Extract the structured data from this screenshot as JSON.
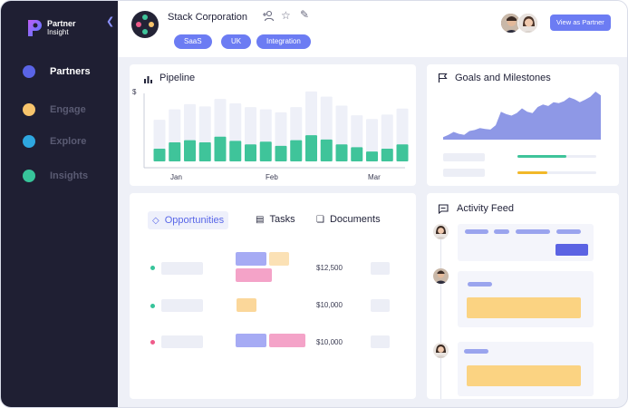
{
  "brand": {
    "line1": "Partner",
    "line2": "Insight"
  },
  "sidebar": {
    "items": [
      {
        "label": "Partners",
        "color": "#5a64e6",
        "active": true
      },
      {
        "label": "Engage",
        "color": "#f7c46c",
        "active": false
      },
      {
        "label": "Explore",
        "color": "#2ea7e0",
        "active": false
      },
      {
        "label": "Insights",
        "color": "#37c49a",
        "active": false
      }
    ]
  },
  "header": {
    "company": "Stack Corporation",
    "tags": [
      "SaaS",
      "UK",
      "Integration"
    ],
    "view_button": "View as Partner"
  },
  "pipeline": {
    "title": "Pipeline",
    "axis_unit": "$",
    "months": [
      "Jan",
      "Feb",
      "Mar"
    ]
  },
  "goals": {
    "title": "Goals and Milestones",
    "progress": [
      0.62,
      0.38
    ]
  },
  "opportunities": {
    "tabs": [
      {
        "label": "Opportunities",
        "active": true,
        "icon": "diamond-icon"
      },
      {
        "label": "Tasks",
        "active": false,
        "icon": "task-list-icon"
      },
      {
        "label": "Documents",
        "active": false,
        "icon": "document-icon"
      }
    ],
    "rows": [
      {
        "amount": "$12,500",
        "dot": "#37c49a"
      },
      {
        "amount": "$10,000",
        "dot": "#37c49a"
      },
      {
        "amount": "$10,000",
        "dot": "#ef5b8a"
      }
    ]
  },
  "activity": {
    "title": "Activity Feed"
  },
  "chart_data": [
    {
      "type": "bar",
      "title": "Pipeline",
      "xlabel": "",
      "ylabel": "$",
      "x_tick_labels": [
        "Jan",
        "Feb",
        "Mar"
      ],
      "series": [
        {
          "values": [
            0.18,
            0.27,
            0.3,
            0.27,
            0.35,
            0.29,
            0.24,
            0.28,
            0.22,
            0.3,
            0.37,
            0.31,
            0.24,
            0.2,
            0.14,
            0.18,
            0.24
          ]
        },
        {
          "values": [
            0.56,
            0.7,
            0.77,
            0.74,
            0.84,
            0.78,
            0.73,
            0.7,
            0.66,
            0.73,
            0.94,
            0.87,
            0.75,
            0.62,
            0.57,
            0.63,
            0.71
          ]
        }
      ],
      "colors": [
        "#3fc49a",
        "#eef0f8"
      ]
    },
    {
      "type": "area",
      "title": "Goals and Milestones",
      "values": [
        0.05,
        0.1,
        0.16,
        0.12,
        0.1,
        0.18,
        0.2,
        0.24,
        0.22,
        0.21,
        0.3,
        0.58,
        0.53,
        0.5,
        0.55,
        0.65,
        0.58,
        0.55,
        0.68,
        0.73,
        0.7,
        0.78,
        0.76,
        0.8,
        0.88,
        0.84,
        0.78,
        0.83,
        0.89,
        1.0,
        0.92
      ],
      "colors": [
        "#8e98e6"
      ]
    }
  ]
}
